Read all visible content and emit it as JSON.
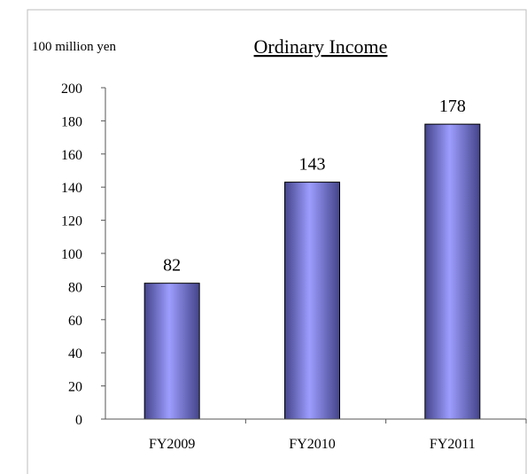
{
  "chart_data": {
    "type": "bar",
    "title": "Ordinary Income",
    "unit_label": "100 million yen",
    "categories": [
      "FY2009",
      "FY2010",
      "FY2011"
    ],
    "values": [
      82,
      143,
      178
    ],
    "data_labels": [
      "82",
      "143",
      "178"
    ],
    "ylim": [
      0,
      200
    ],
    "yticks": [
      0,
      20,
      40,
      60,
      80,
      100,
      120,
      140,
      160,
      180,
      200
    ],
    "grid": false,
    "legend": "none",
    "colors": {
      "bar_center": "#9d9dff",
      "bar_edge": "#44448a",
      "axis": "#555555",
      "frame": "#bdbdbd"
    }
  }
}
